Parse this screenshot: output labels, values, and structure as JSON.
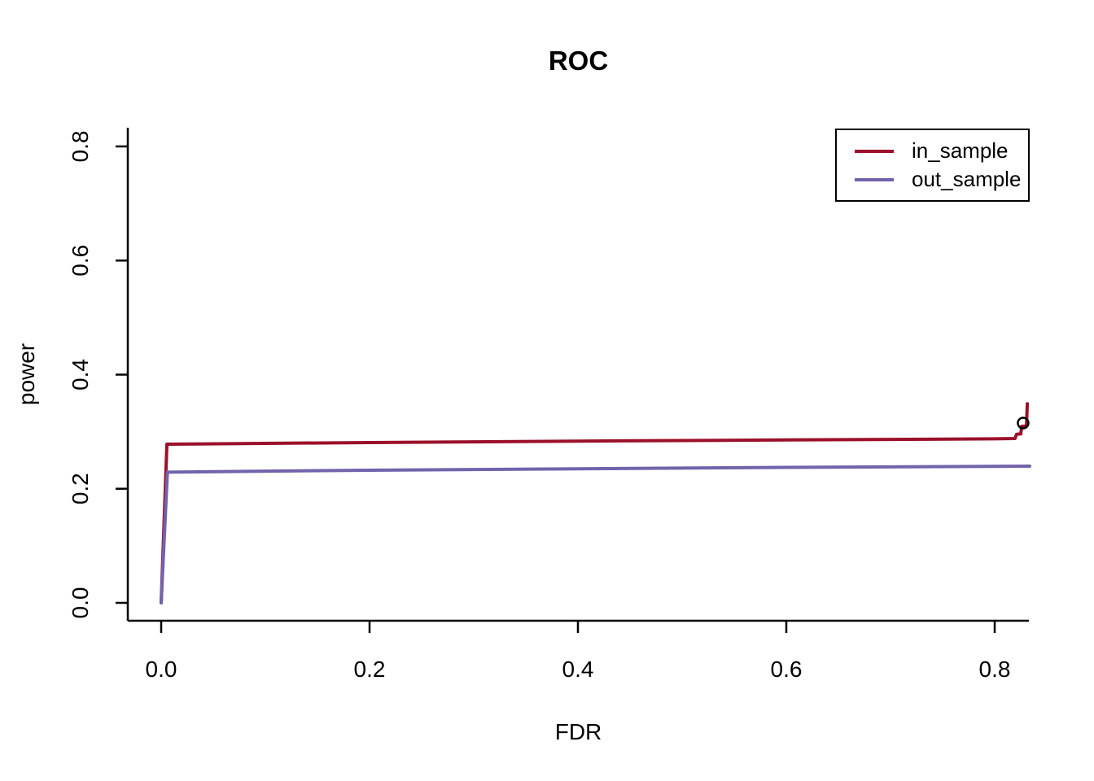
{
  "chart_data": {
    "type": "line",
    "title": "ROC",
    "xlabel": "FDR",
    "ylabel": "power",
    "xlim": [
      0,
      0.84
    ],
    "ylim": [
      0,
      0.8
    ],
    "x_ticks": [
      "0.0",
      "0.2",
      "0.4",
      "0.6",
      "0.8"
    ],
    "x_tick_values": [
      0,
      0.2,
      0.4,
      0.6,
      0.8
    ],
    "y_ticks": [
      "0.0",
      "0.2",
      "0.4",
      "0.6",
      "0.8"
    ],
    "y_tick_values": [
      0,
      0.2,
      0.4,
      0.6,
      0.8
    ],
    "grid": false,
    "legend_position": "top-right",
    "axis_color": "#000000",
    "series": [
      {
        "name": "in_sample",
        "color": "#9b102a",
        "points": [
          [
            0,
            0
          ],
          [
            0.0055,
            0.278
          ],
          [
            0.2,
            0.281
          ],
          [
            0.4,
            0.2835
          ],
          [
            0.6,
            0.2855
          ],
          [
            0.8,
            0.2875
          ],
          [
            0.8195,
            0.288
          ],
          [
            0.821,
            0.2955
          ],
          [
            0.825,
            0.296
          ],
          [
            0.826,
            0.3095
          ],
          [
            0.8305,
            0.31
          ],
          [
            0.8313,
            0.349
          ]
        ]
      },
      {
        "name": "out_sample",
        "color": "#7263ab",
        "points": [
          [
            0,
            0
          ],
          [
            0.006,
            0.229
          ],
          [
            0.2,
            0.2325
          ],
          [
            0.4,
            0.235
          ],
          [
            0.6,
            0.2375
          ],
          [
            0.8336,
            0.2395
          ]
        ]
      }
    ],
    "markers": [
      {
        "x": 0.8273,
        "y": 0.3152,
        "shape": "open-circle",
        "color": "#000000",
        "series": "in_sample"
      }
    ]
  },
  "legend": {
    "items": [
      {
        "label": "in_sample",
        "color": "#9b102a"
      },
      {
        "label": "out_sample",
        "color": "#7263ab"
      }
    ]
  }
}
